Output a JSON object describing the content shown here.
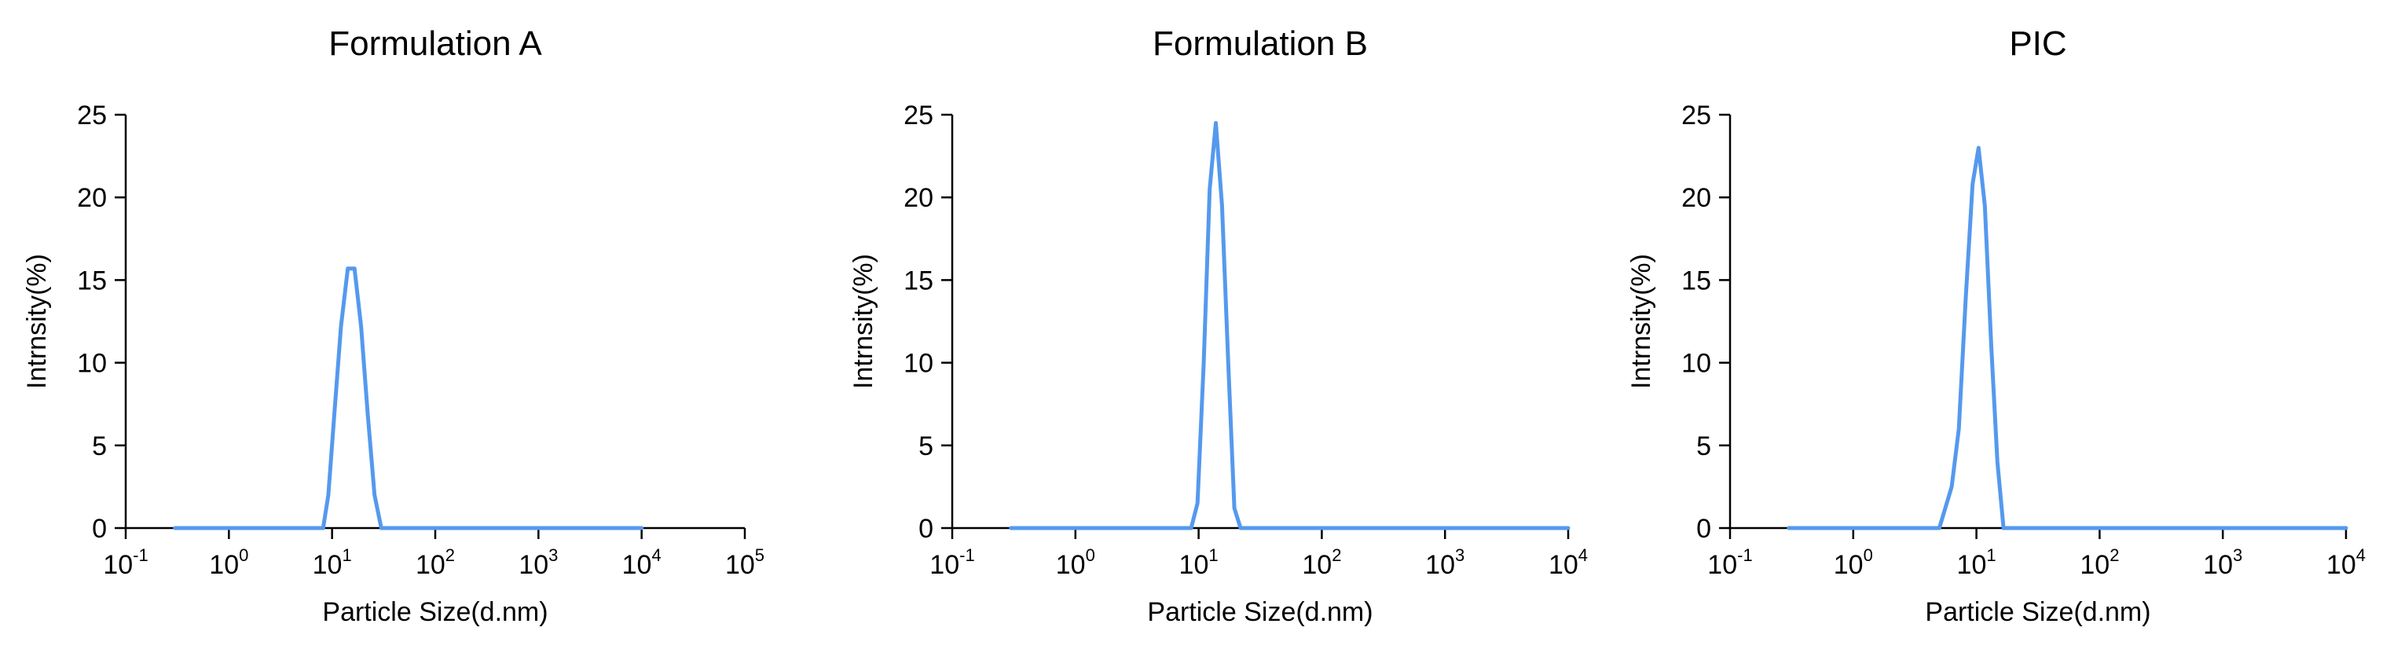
{
  "chart_data": [
    {
      "type": "line",
      "title": "Formulation A",
      "xlabel": "Particle Size(d.nm)",
      "ylabel": "Intrnsity(%)",
      "x_scale": "log",
      "xlim": [
        0.1,
        100000
      ],
      "ylim": [
        0,
        25
      ],
      "x_ticks": [
        {
          "base": "10",
          "exp": "-1"
        },
        {
          "base": "10",
          "exp": "0"
        },
        {
          "base": "10",
          "exp": "1"
        },
        {
          "base": "10",
          "exp": "2"
        },
        {
          "base": "10",
          "exp": "3"
        },
        {
          "base": "10",
          "exp": "4"
        },
        {
          "base": "10",
          "exp": "5"
        }
      ],
      "y_ticks": [
        "0",
        "5",
        "10",
        "15",
        "20",
        "25"
      ],
      "grid": false,
      "series_color": "#5599EE",
      "series": [
        {
          "x": [
            0.3,
            0.5,
            1,
            2,
            4,
            6,
            8.2,
            9.2,
            10.5,
            12.2,
            14.2,
            16.5,
            19.1,
            22.2,
            25.8,
            30.0,
            34.8,
            50,
            100,
            1000,
            10000
          ],
          "y": [
            0,
            0,
            0,
            0,
            0,
            0,
            0,
            2.0,
            6.8,
            12.2,
            15.7,
            15.7,
            12.2,
            6.8,
            2.0,
            0,
            0,
            0,
            0,
            0,
            0
          ]
        }
      ]
    },
    {
      "type": "line",
      "title": "Formulation B",
      "xlabel": "Particle Size(d.nm)",
      "ylabel": "Intrnsity(%)",
      "x_scale": "log",
      "xlim": [
        0.1,
        10000
      ],
      "ylim": [
        0,
        25
      ],
      "x_ticks": [
        {
          "base": "10",
          "exp": "-1"
        },
        {
          "base": "10",
          "exp": "0"
        },
        {
          "base": "10",
          "exp": "1"
        },
        {
          "base": "10",
          "exp": "2"
        },
        {
          "base": "10",
          "exp": "3"
        },
        {
          "base": "10",
          "exp": "4"
        }
      ],
      "y_ticks": [
        "0",
        "5",
        "10",
        "15",
        "20",
        "25"
      ],
      "grid": false,
      "series_color": "#5599EE",
      "series": [
        {
          "x": [
            0.3,
            0.5,
            1,
            2,
            4,
            7.5,
            8.7,
            9.8,
            11.0,
            12.3,
            13.8,
            15.5,
            17.4,
            19.5,
            21.9,
            24.5,
            27.5,
            50,
            100,
            1000,
            10000
          ],
          "y": [
            0,
            0,
            0,
            0,
            0,
            0,
            0,
            1.5,
            10.0,
            20.5,
            24.5,
            19.5,
            10.0,
            1.2,
            0,
            0,
            0,
            0,
            0,
            0,
            0
          ]
        }
      ]
    },
    {
      "type": "line",
      "title": "PIC",
      "xlabel": "Particle Size(d.nm)",
      "ylabel": "Intrnsity(%)",
      "x_scale": "log",
      "xlim": [
        0.1,
        10000
      ],
      "ylim": [
        0,
        25
      ],
      "x_ticks": [
        {
          "base": "10",
          "exp": "-1"
        },
        {
          "base": "10",
          "exp": "0"
        },
        {
          "base": "10",
          "exp": "1"
        },
        {
          "base": "10",
          "exp": "2"
        },
        {
          "base": "10",
          "exp": "3"
        },
        {
          "base": "10",
          "exp": "4"
        }
      ],
      "y_ticks": [
        "0",
        "5",
        "10",
        "15",
        "20",
        "25"
      ],
      "grid": false,
      "series_color": "#5599EE",
      "series": [
        {
          "x": [
            0.3,
            0.5,
            1,
            2,
            4,
            5.0,
            6.3,
            7.2,
            8.2,
            9.3,
            10.4,
            11.7,
            13.2,
            14.8,
            16.6,
            18.6,
            20.9,
            23.4,
            26.3,
            50,
            100,
            1000,
            10000
          ],
          "y": [
            0,
            0,
            0,
            0,
            0,
            0,
            2.5,
            6.0,
            14.0,
            20.8,
            23.0,
            19.5,
            11.0,
            4.0,
            0,
            0,
            0,
            0,
            0,
            0,
            0,
            0,
            0
          ]
        }
      ]
    }
  ]
}
